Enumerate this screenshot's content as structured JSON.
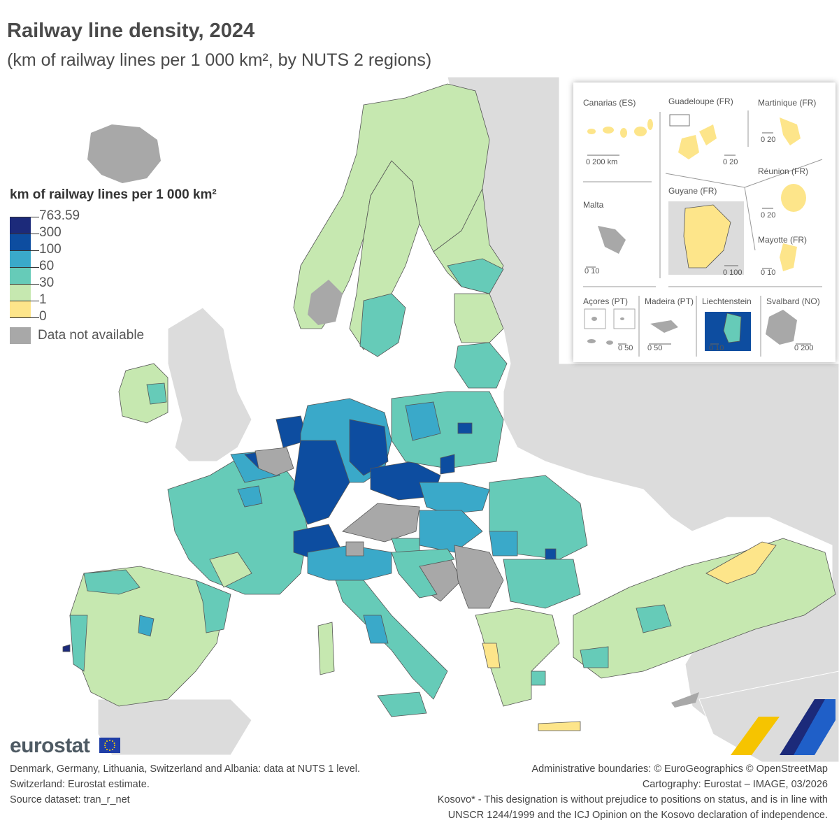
{
  "title": "Railway line density, 2024",
  "subtitle": "(km of railway lines per 1 000 km², by NUTS 2 regions)",
  "legend": {
    "title": "km of railway lines per 1 000 km²",
    "classes": [
      {
        "label": "763.59",
        "color": "#1c2a7a"
      },
      {
        "label": "300",
        "color": "#0d4da0"
      },
      {
        "label": "100",
        "color": "#3aa9c9"
      },
      {
        "label": "60",
        "color": "#66cbb8"
      },
      {
        "label": "30",
        "color": "#c6e8b0"
      },
      {
        "label": "1",
        "color": "#fde58a"
      },
      {
        "label": "0",
        "color": ""
      }
    ],
    "na_label": "Data not available",
    "na_color": "#a8a8a8"
  },
  "insets": {
    "canarias": "Canarias (ES)",
    "guadeloupe": "Guadeloupe (FR)",
    "martinique": "Martinique (FR)",
    "reunion": "Réunion (FR)",
    "guyane": "Guyane (FR)",
    "malta": "Malta",
    "mayotte": "Mayotte (FR)",
    "acores": "Açores (PT)",
    "madeira": "Madeira (PT)",
    "liechtenstein": "Liechtenstein",
    "svalbard": "Svalbard (NO)",
    "scales": {
      "canarias": "0     200 km",
      "guadeloupe": "0  20",
      "martinique": "0  20",
      "reunion": "0  20",
      "guyane": "0    100",
      "malta": "0  10",
      "mayotte": "0 10",
      "acores": "0  50",
      "madeira": "0      50",
      "liechtenstein": "0  10",
      "svalbard": "0     200"
    }
  },
  "logo": "eurostat",
  "footnotes_left": [
    "Denmark, Germany, Lithuania, Switzerland and Albania: data at NUTS 1 level.",
    "Switzerland: Eurostat estimate.",
    "Source dataset: tran_r_net"
  ],
  "footnotes_right": [
    "Administrative boundaries: © EuroGeographics © OpenStreetMap",
    "Cartography: Eurostat – IMAGE, 03/2026",
    "Kosovo* - This designation is without prejudice to positions on status, and is in line with",
    "UNSCR 1244/1999 and the ICJ Opinion on the Kosovo declaration of independence."
  ],
  "colors": {
    "background_land": "#dcdcdc",
    "sea": "#ffffff"
  }
}
